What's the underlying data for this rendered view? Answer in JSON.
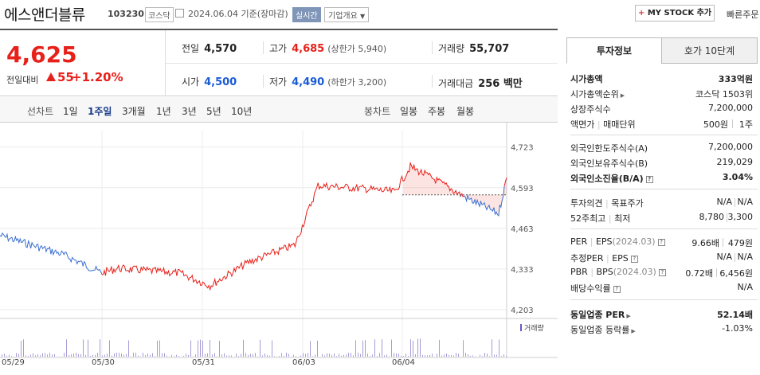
{
  "header": {
    "name": "에스앤더블류",
    "code": "103230",
    "market": "코스닥",
    "date": "2024.06.04 기준(장마감)",
    "realtime": "실시간",
    "corp_info": "기업개요",
    "my_stock": "MY STOCK 추가",
    "quick_order": "빠른주문"
  },
  "summary": {
    "price": "4,625",
    "prev_label": "전일대비",
    "change": "55",
    "change_pct": "+1.20%",
    "prev_close_label": "전일",
    "prev_close": "4,570",
    "high_label": "고가",
    "high": "4,685",
    "upper_limit": "(상한가 5,940)",
    "volume_label": "거래량",
    "volume": "55,707",
    "open_label": "시가",
    "open": "4,500",
    "low_label": "저가",
    "low": "4,490",
    "lower_limit": "(하한가 3,200)",
    "amount_label": "거래대금",
    "amount": "256 백만"
  },
  "tabs": {
    "line_caption": "선차트",
    "line": [
      "1일",
      "1주일",
      "3개월",
      "1년",
      "3년",
      "5년",
      "10년"
    ],
    "selected": "1주일",
    "candle_caption": "봉차트",
    "candle": [
      "일봉",
      "주봉",
      "월봉"
    ]
  },
  "chart_data": {
    "type": "line",
    "title": "",
    "x_ticks": [
      "05/29",
      "05/30",
      "05/31",
      "06/03",
      "06/04"
    ],
    "y_ticks": [
      4723,
      4593,
      4463,
      4333,
      4203
    ],
    "ylim": [
      4190,
      4735
    ],
    "base_price": 4570,
    "volume_legend": "거래량",
    "series": [
      {
        "x": "05/29 09:00",
        "y": 4440
      },
      {
        "x": "05/29 13:00",
        "y": 4380
      },
      {
        "x": "05/29 15:30",
        "y": 4320
      },
      {
        "x": "05/30 10:00",
        "y": 4335
      },
      {
        "x": "05/30 14:00",
        "y": 4320
      },
      {
        "x": "05/31 09:30",
        "y": 4280
      },
      {
        "x": "05/31 12:00",
        "y": 4355
      },
      {
        "x": "05/31 15:00",
        "y": 4410
      },
      {
        "x": "06/03 10:00",
        "y": 4600
      },
      {
        "x": "06/03 13:00",
        "y": 4590
      },
      {
        "x": "06/03 15:00",
        "y": 4580
      },
      {
        "x": "06/04 09:30",
        "y": 4660
      },
      {
        "x": "06/04 11:00",
        "y": 4620
      },
      {
        "x": "06/04 13:00",
        "y": 4560
      },
      {
        "x": "06/04 15:00",
        "y": 4510
      },
      {
        "x": "06/04 15:30",
        "y": 4625
      }
    ]
  },
  "right_panel": {
    "tab_invest": "투자정보",
    "tab_hoga": "호가 10단계",
    "market_cap_label": "시가총액",
    "market_cap": "333억원",
    "cap_rank_label": "시가총액순위",
    "cap_rank": "코스닥 1503위",
    "shares_label": "상장주식수",
    "shares": "7,200,000",
    "face_label": "액면가",
    "unit_label": "매매단위",
    "face": "500원",
    "unit": "1주",
    "foreign_limit_label": "외국인한도주식수(A)",
    "foreign_limit": "7,200,000",
    "foreign_hold_label": "외국인보유주식수(B)",
    "foreign_hold": "219,029",
    "foreign_ratio_label": "외국인소진율(B/A)",
    "foreign_ratio": "3.04%",
    "opinion_label": "투자의견",
    "target_label": "목표주가",
    "opinion": "N/A",
    "target": "N/A",
    "week52_label": "52주최고",
    "week52_low_label": "최저",
    "week52_high": "8,780",
    "week52_low": "3,300",
    "per_label": "PER",
    "eps_label": "EPS",
    "eps_period": "(2024.03)",
    "per": "9.66배",
    "eps": "479원",
    "est_per_label": "추정PER",
    "est_eps_label": "EPS",
    "est_per": "N/A",
    "est_eps": "N/A",
    "pbr_label": "PBR",
    "bps_label": "BPS",
    "bps_period": "(2024.03)",
    "pbr": "0.72배",
    "bps": "6,456원",
    "dividend_label": "배당수익률",
    "dividend": "N/A",
    "sector_per_label": "동일업종 PER",
    "sector_per": "52.14배",
    "sector_change_label": "동일업종 등락률",
    "sector_change": "-1.03%"
  }
}
